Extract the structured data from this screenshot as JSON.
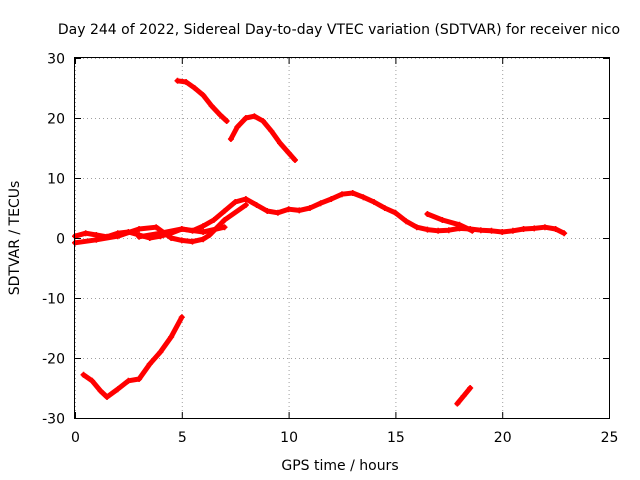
{
  "chart_data": {
    "type": "line",
    "title": "Day 244 of 2022, Sidereal Day-to-day VTEC variation (SDTVAR) for receiver nico",
    "xlabel": "GPS time / hours",
    "ylabel": "SDTVAR / TECUs",
    "xlim": [
      0,
      25
    ],
    "ylim": [
      -30,
      30
    ],
    "xticks": [
      0,
      5,
      10,
      15,
      20,
      25
    ],
    "yticks": [
      -30,
      -20,
      -10,
      0,
      10,
      20,
      30
    ],
    "xtick_labels": [
      "0",
      "5",
      "10",
      "15",
      "20",
      "25"
    ],
    "ytick_labels": [
      "-30",
      "-20",
      "-10",
      "0",
      "10",
      "20",
      "30"
    ],
    "grid": true,
    "color": "#ff0000",
    "series": [
      {
        "name": "arc-main-1",
        "x": [
          0.0,
          0.5,
          1.0,
          1.5,
          2.0,
          2.5,
          3.0,
          3.5,
          4.0,
          4.5,
          5.0,
          5.5,
          6.0,
          6.5,
          7.0,
          7.5,
          8.0,
          8.5,
          9.0,
          9.5,
          10.0,
          10.5,
          11.0,
          11.5,
          12.0,
          12.5,
          13.0,
          13.5,
          14.0,
          14.5,
          15.0,
          15.5,
          16.0,
          16.5,
          17.0,
          17.5,
          18.0,
          18.5,
          19.0,
          19.5,
          20.0,
          20.5,
          21.0,
          21.5,
          22.0,
          22.5,
          22.9
        ],
        "y": [
          0.3,
          0.8,
          0.5,
          0.2,
          0.8,
          1.0,
          0.5,
          0.0,
          0.3,
          0.8,
          1.5,
          1.2,
          2.0,
          3.0,
          4.5,
          6.0,
          6.5,
          5.5,
          4.5,
          4.2,
          4.8,
          4.6,
          5.0,
          5.8,
          6.5,
          7.3,
          7.5,
          6.8,
          6.0,
          5.0,
          4.2,
          2.8,
          1.8,
          1.4,
          1.2,
          1.3,
          1.6,
          1.5,
          1.3,
          1.2,
          1.0,
          1.2,
          1.5,
          1.6,
          1.8,
          1.5,
          0.8
        ]
      },
      {
        "name": "arc-main-2",
        "x": [
          0.0,
          1.0,
          2.0,
          3.0,
          3.8,
          4.5,
          5.0,
          5.5,
          6.0,
          6.3,
          7.0,
          8.0
        ],
        "y": [
          -0.8,
          -0.3,
          0.3,
          1.5,
          1.8,
          0.0,
          -0.4,
          -0.6,
          -0.2,
          0.5,
          3.0,
          5.5
        ]
      },
      {
        "name": "arc-main-3",
        "x": [
          3.0,
          4.0,
          5.0,
          6.0,
          7.0
        ],
        "y": [
          0.2,
          0.8,
          1.5,
          1.0,
          1.8
        ]
      },
      {
        "name": "arc-main-4",
        "x": [
          16.5,
          17.2,
          18.0,
          18.6
        ],
        "y": [
          4.0,
          3.0,
          2.2,
          1.2
        ]
      },
      {
        "name": "arc-high-1",
        "x": [
          4.8,
          5.2,
          5.6,
          6.0,
          6.4,
          6.8,
          7.1
        ],
        "y": [
          26.2,
          26.0,
          25.0,
          23.8,
          22.0,
          20.5,
          19.5
        ]
      },
      {
        "name": "arc-high-2",
        "x": [
          7.3,
          7.6,
          8.0,
          8.4,
          8.8,
          9.2,
          9.6,
          10.0,
          10.3
        ],
        "y": [
          16.5,
          18.5,
          20.0,
          20.3,
          19.5,
          17.8,
          15.8,
          14.2,
          13.0
        ]
      },
      {
        "name": "arc-low-1",
        "x": [
          0.4,
          0.8,
          1.2,
          1.5,
          2.0,
          2.5,
          3.0,
          3.5,
          4.0,
          4.5,
          5.0
        ],
        "y": [
          -22.8,
          -23.8,
          -25.5,
          -26.5,
          -25.2,
          -23.8,
          -23.5,
          -21.0,
          -19.0,
          -16.5,
          -13.2
        ]
      },
      {
        "name": "arc-low-2",
        "x": [
          17.9,
          18.2,
          18.5
        ],
        "y": [
          -27.6,
          -26.3,
          -25.0
        ]
      }
    ]
  }
}
